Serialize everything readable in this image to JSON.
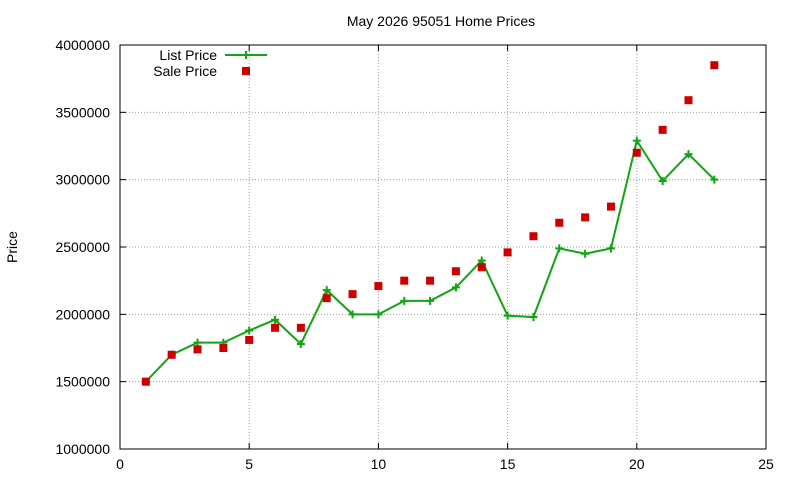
{
  "chart_data": {
    "type": "line",
    "title": "May 2026 95051 Home Prices",
    "xlabel": "",
    "ylabel": "Price",
    "xlim": [
      0,
      25
    ],
    "ylim": [
      1000000,
      4000000
    ],
    "x_ticks": [
      0,
      5,
      10,
      15,
      20,
      25
    ],
    "y_ticks": [
      1000000,
      1500000,
      2000000,
      2500000,
      3000000,
      3500000,
      4000000
    ],
    "grid": true,
    "legend_position": "top-left",
    "series": [
      {
        "name": "List Price",
        "style": "lines+crosses",
        "color": "#11a611",
        "x": [
          1,
          2,
          3,
          4,
          5,
          6,
          7,
          8,
          9,
          10,
          11,
          12,
          13,
          14,
          15,
          16,
          17,
          18,
          19,
          20,
          21,
          22,
          23
        ],
        "values": [
          1500000,
          1700000,
          1790000,
          1790000,
          1880000,
          1960000,
          1780000,
          2180000,
          2000000,
          2000000,
          2100000,
          2100000,
          2200000,
          2400000,
          1990000,
          1980000,
          2490000,
          2450000,
          2490000,
          3290000,
          2990000,
          3190000,
          3000000
        ]
      },
      {
        "name": "Sale Price",
        "style": "squares",
        "color": "#cc0000",
        "x": [
          1,
          2,
          3,
          4,
          5,
          6,
          7,
          8,
          9,
          10,
          11,
          12,
          13,
          14,
          15,
          16,
          17,
          18,
          19,
          20,
          21,
          22,
          23
        ],
        "values": [
          1500000,
          1700000,
          1740000,
          1750000,
          1810000,
          1900000,
          1900000,
          2120000,
          2150000,
          2210000,
          2250000,
          2250000,
          2320000,
          2350000,
          2460000,
          2580000,
          2680000,
          2720000,
          2800000,
          3200000,
          3370000,
          3590000,
          3850000
        ]
      }
    ]
  }
}
